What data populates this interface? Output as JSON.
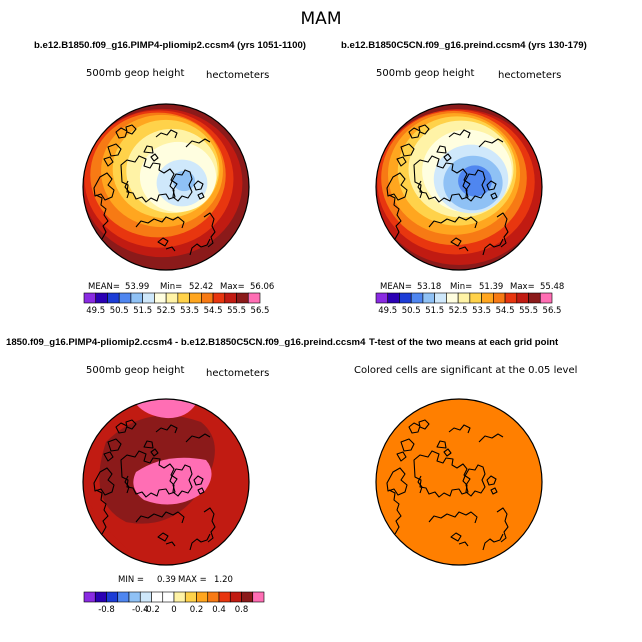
{
  "figure": {
    "title": "MAM"
  },
  "panels": [
    {
      "title": "b.e12.B1850.f09_g16.PIMP4-pliomip2.ccsm4 (yrs 1051-1100)",
      "left_label": "500mb geop height",
      "right_label": "hectometers",
      "stats": {
        "mean_label": "MEAN=",
        "mean": "53.99",
        "min_label": "Min=",
        "min": "52.42",
        "max_label": "Max=",
        "max": "56.06"
      }
    },
    {
      "title": "b.e12.B1850C5CN.f09_g16.preind.ccsm4 (yrs 130-179)",
      "left_label": "500mb geop height",
      "right_label": "hectometers",
      "stats": {
        "mean_label": "MEAN=",
        "mean": "53.18",
        "min_label": "Min=",
        "min": "51.39",
        "max_label": "Max=",
        "max": "55.48"
      }
    },
    {
      "title": "1850.f09_g16.PIMP4-pliomip2.ccsm4 - b.e12.B1850C5CN.f09_g16.preind.ccsm4",
      "left_label": "500mb geop height",
      "right_label": "hectometers",
      "stats": {
        "min_label": "MIN =",
        "min": "0.39",
        "max_label": "MAX =",
        "max": "1.20"
      }
    },
    {
      "title": "T-test of the two means at each grid point",
      "note": "Colored cells are significant at the 0.05 level"
    }
  ],
  "colors": {
    "abs_palette": [
      "#8a2be2",
      "#2b00b4",
      "#1c3cd6",
      "#4f86f0",
      "#8fc1f5",
      "#cfe8fb",
      "#fffee0",
      "#fff3a6",
      "#ffd24a",
      "#ffa61f",
      "#f77a14",
      "#e8360f",
      "#c11b12",
      "#8b1a1a",
      "#ff6eb4"
    ],
    "diff_palette": [
      "#8a2be2",
      "#2b00b4",
      "#1c3cd6",
      "#4f86f0",
      "#8fc1f5",
      "#cfe8fb",
      "#ffffff",
      "#ffffff",
      "#fff3a6",
      "#ffd24a",
      "#ffa61f",
      "#f77a14",
      "#e8360f",
      "#c11b12",
      "#8b1a1a",
      "#ff6eb4"
    ],
    "significance": "#ff7f00",
    "coast": "#000000"
  },
  "chart_data": [
    {
      "type": "heatmap",
      "projection": "north-polar-stereographic",
      "title": "b.e12.B1850.f09_g16.PIMP4-pliomip2.ccsm4 (yrs 1051-1100)",
      "variable": "500mb geop height",
      "units": "hectometers",
      "mean": 53.99,
      "min": 52.42,
      "max": 56.06,
      "colorbar_levels": [
        49.5,
        50.0,
        50.5,
        51.0,
        51.5,
        52.0,
        52.5,
        53.0,
        53.5,
        54.0,
        54.5,
        55.0,
        55.5,
        56.0,
        56.5
      ],
      "colorbar_labels": [
        "49.5",
        "50.5",
        "51.5",
        "52.5",
        "53.5",
        "54.5",
        "55.5",
        "56.5"
      ]
    },
    {
      "type": "heatmap",
      "projection": "north-polar-stereographic",
      "title": "b.e12.B1850C5CN.f09_g16.preind.ccsm4 (yrs 130-179)",
      "variable": "500mb geop height",
      "units": "hectometers",
      "mean": 53.18,
      "min": 51.39,
      "max": 55.48,
      "colorbar_levels": [
        49.5,
        50.0,
        50.5,
        51.0,
        51.5,
        52.0,
        52.5,
        53.0,
        53.5,
        54.0,
        54.5,
        55.0,
        55.5,
        56.0,
        56.5
      ],
      "colorbar_labels": [
        "49.5",
        "50.5",
        "51.5",
        "52.5",
        "53.5",
        "54.5",
        "55.5",
        "56.5"
      ]
    },
    {
      "type": "heatmap",
      "projection": "north-polar-stereographic",
      "title": "1850.f09_g16.PIMP4-pliomip2.ccsm4 - b.e12.B1850C5CN.f09_g16.preind.ccsm4",
      "variable": "500mb geop height",
      "units": "hectometers",
      "min": 0.39,
      "max": 1.2,
      "colorbar_levels": [
        -0.8,
        -0.6,
        -0.4,
        -0.2,
        0,
        0.2,
        0.4,
        0.6,
        0.8
      ],
      "colorbar_labels": [
        "-0.8",
        "-0.4",
        "-0.2",
        "0",
        "0.2",
        "0.4",
        "0.8"
      ]
    },
    {
      "type": "heatmap",
      "projection": "north-polar-stereographic",
      "title": "T-test of the two means at each grid point",
      "note": "Colored cells are significant at the 0.05 level",
      "significant_everywhere": true
    }
  ]
}
